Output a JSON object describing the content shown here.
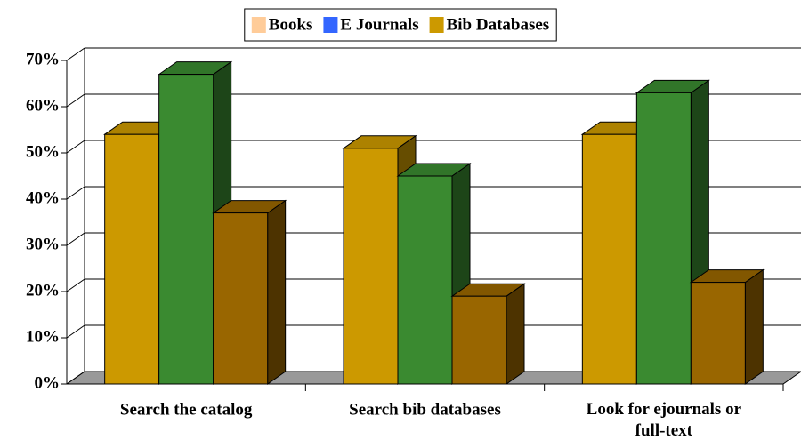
{
  "chart_data": {
    "type": "bar3d",
    "categories": [
      "Search the catalog",
      "Search bib databases",
      "Look for ejournals or full-text"
    ],
    "series": [
      {
        "name": "Books",
        "color": "#cc9900",
        "legend_color": "#ffcc99",
        "values": [
          54,
          51,
          54
        ]
      },
      {
        "name": "E Journals",
        "color": "#3a8a30",
        "legend_color": "#3366ff",
        "values": [
          67,
          45,
          63
        ]
      },
      {
        "name": "Bib Databases",
        "color": "#996600",
        "legend_color": "#cc9900",
        "values": [
          37,
          19,
          22
        ]
      }
    ],
    "ylim": [
      0,
      70
    ],
    "yticks": [
      {
        "value": 0,
        "label": "0%"
      },
      {
        "value": 10,
        "label": "10%"
      },
      {
        "value": 20,
        "label": "20%"
      },
      {
        "value": 30,
        "label": "30%"
      },
      {
        "value": 40,
        "label": "40%"
      },
      {
        "value": 50,
        "label": "50%"
      },
      {
        "value": 60,
        "label": "60%"
      },
      {
        "value": 70,
        "label": "70%"
      }
    ],
    "grid": true,
    "legend": "top"
  }
}
